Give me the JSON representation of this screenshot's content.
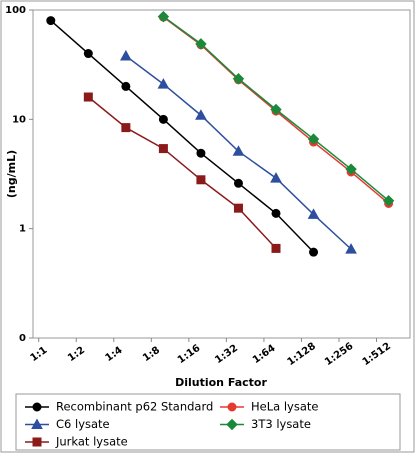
{
  "chart_data": {
    "type": "line",
    "x_label": "Dilution Factor",
    "y_label": "(ng/mL)",
    "xscale": "log",
    "yscale": "log",
    "grid": false,
    "xlim": [
      0.9,
      950
    ],
    "ylim": [
      0.1,
      100
    ],
    "xticks": [
      {
        "value": 1,
        "label": "1:1"
      },
      {
        "value": 2,
        "label": "1:2"
      },
      {
        "value": 4,
        "label": "1:4"
      },
      {
        "value": 8,
        "label": "1:8"
      },
      {
        "value": 16,
        "label": "1:16"
      },
      {
        "value": 32,
        "label": "1:32"
      },
      {
        "value": 64,
        "label": "1:64"
      },
      {
        "value": 128,
        "label": "1:128"
      },
      {
        "value": 256,
        "label": "1:256"
      },
      {
        "value": 512,
        "label": "1:512"
      }
    ],
    "yticks": [
      {
        "value": 0.1,
        "label": "0"
      },
      1,
      10,
      100
    ],
    "series": [
      {
        "name": "Recombinant p62 Standard",
        "color": "#000000",
        "marker": "circle",
        "x": [
          1.25,
          2.5,
          5,
          10,
          20,
          40,
          80,
          160
        ],
        "values": [
          80,
          40,
          20,
          10,
          4.9,
          2.6,
          1.38,
          0.61
        ]
      },
      {
        "name": "HeLa lysate",
        "color": "#e53a2f",
        "marker": "circle",
        "x": [
          10,
          20,
          40,
          80,
          160,
          320,
          640
        ],
        "values": [
          86,
          48,
          23,
          11.9,
          6.2,
          3.3,
          1.7
        ]
      },
      {
        "name": "C6 lysate",
        "color": "#2e4fa0",
        "marker": "triangle",
        "x": [
          5,
          10,
          20,
          40,
          80,
          160,
          320
        ],
        "values": [
          38,
          21,
          10.9,
          5.1,
          2.9,
          1.35,
          0.65
        ]
      },
      {
        "name": "3T3 lysate",
        "color": "#1a8a3a",
        "marker": "diamond",
        "x": [
          10,
          20,
          40,
          80,
          160,
          320,
          640
        ],
        "values": [
          87,
          49,
          23.5,
          12.3,
          6.6,
          3.5,
          1.8
        ]
      },
      {
        "name": "Jurkat lysate",
        "color": "#8b1a1a",
        "marker": "square",
        "x": [
          2.5,
          5,
          10,
          20,
          40,
          80
        ],
        "values": [
          16,
          8.4,
          5.4,
          2.8,
          1.54,
          0.66
        ]
      }
    ]
  }
}
